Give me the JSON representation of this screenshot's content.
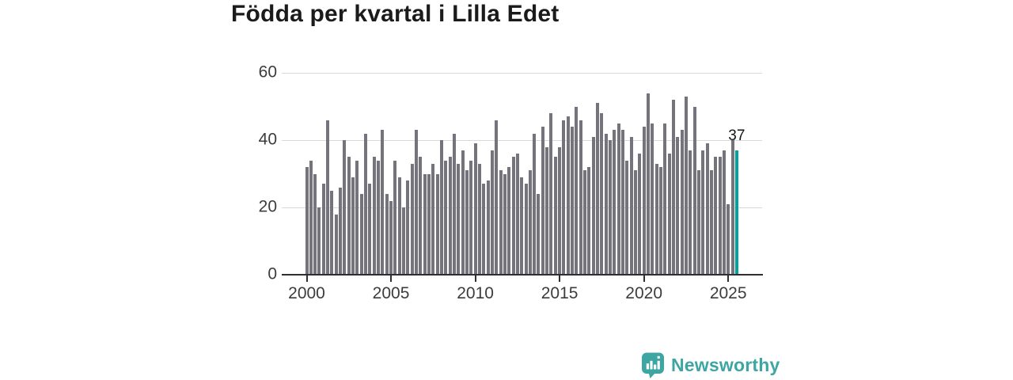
{
  "title": "Födda per kvartal i Lilla Edet",
  "annotation": {
    "value_label": "37"
  },
  "branding": {
    "name": "Newsworthy",
    "logo_icon": "bar-chart-speech-bubble"
  },
  "colors": {
    "bar": "#75747c",
    "highlight": "#00a29b",
    "grid": "#d9d9d9",
    "axis": "#2f2e33",
    "tick_text": "#3c3c3c",
    "title_text": "#1b1b1b",
    "brand_teal": "#3ea6a2"
  },
  "chart_data": {
    "type": "bar",
    "title": "Födda per kvartal i Lilla Edet",
    "x_start": "2000 Q1",
    "x_end": "2025 Q3",
    "quarters_per_year": 4,
    "ylim": [
      0,
      60
    ],
    "y_ticks": [
      0,
      20,
      40,
      60
    ],
    "x_tick_labels": [
      "2000",
      "2005",
      "2010",
      "2015",
      "2020",
      "2025"
    ],
    "grid": "horizontal",
    "legend": "none",
    "values": [
      32,
      34,
      30,
      20,
      27,
      46,
      25,
      18,
      26,
      40,
      35,
      29,
      34,
      24,
      42,
      27,
      35,
      34,
      43,
      24,
      22,
      34,
      29,
      20,
      28,
      33,
      43,
      35,
      30,
      30,
      33,
      30,
      40,
      34,
      35,
      42,
      33,
      37,
      31,
      34,
      39,
      33,
      27,
      28,
      37,
      46,
      31,
      30,
      32,
      35,
      36,
      29,
      27,
      31,
      42,
      24,
      44,
      38,
      48,
      35,
      38,
      46,
      47,
      44,
      50,
      46,
      31,
      32,
      41,
      51,
      48,
      42,
      40,
      43,
      45,
      43,
      34,
      41,
      31,
      36,
      44,
      54,
      45,
      33,
      32,
      45,
      36,
      52,
      41,
      43,
      53,
      37,
      50,
      31,
      37,
      39,
      31,
      35,
      35,
      37,
      21,
      40,
      37
    ],
    "highlight": {
      "index": 102,
      "label": "37"
    }
  }
}
